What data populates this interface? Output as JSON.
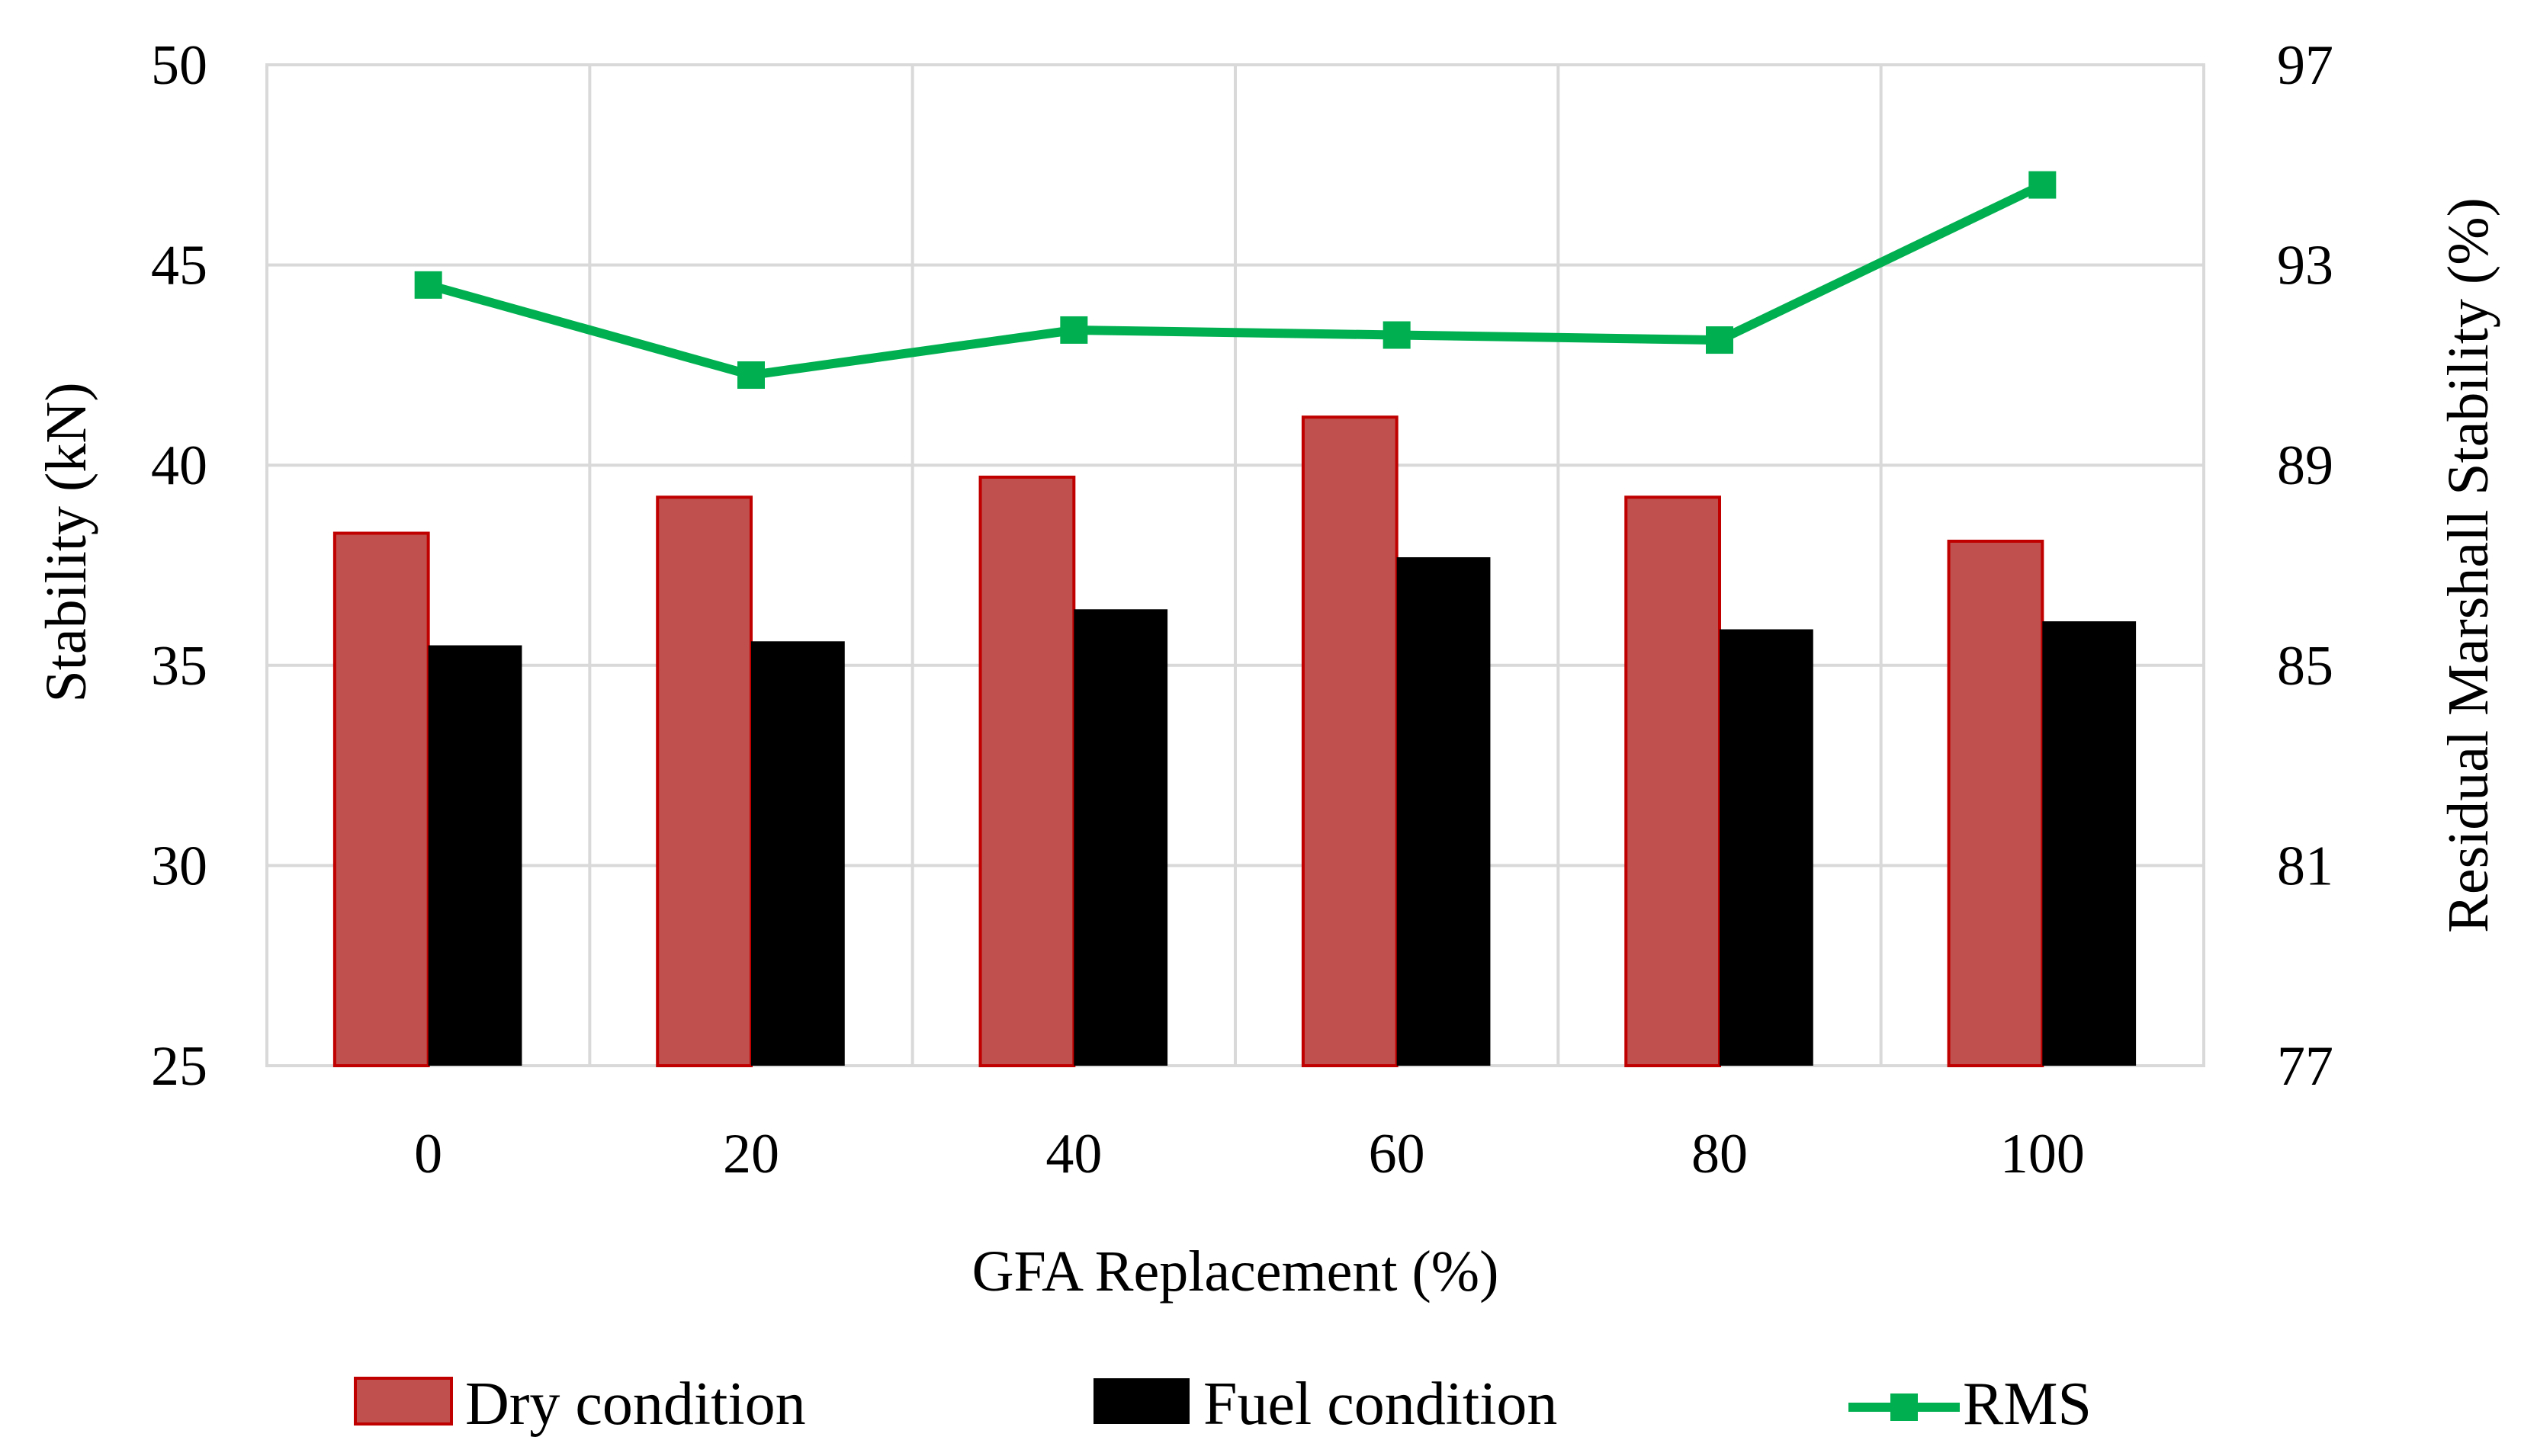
{
  "chart_data": {
    "type": "bar",
    "title": "",
    "xlabel": "GFA Replacement (%)",
    "ylabel": "Stability (kN)",
    "y2label": "Residual Marshall Stability (%)",
    "categories": [
      "0",
      "20",
      "40",
      "60",
      "80",
      "100"
    ],
    "ylim": [
      25,
      50
    ],
    "yticks": [
      "25",
      "30",
      "35",
      "40",
      "45",
      "50"
    ],
    "y2lim": [
      77,
      97
    ],
    "y2ticks": [
      "77",
      "81",
      "85",
      "89",
      "93",
      "97"
    ],
    "grid": true,
    "legend_position": "bottom",
    "series": [
      {
        "name": "Dry condition",
        "type": "bar",
        "axis": "left",
        "color": "#c0504d",
        "edge_color": "#c00000",
        "values": [
          38.3,
          39.2,
          39.7,
          41.2,
          39.2,
          38.1
        ]
      },
      {
        "name": "Fuel condition",
        "type": "bar",
        "axis": "left",
        "color": "#000000",
        "edge_color": "#000000",
        "values": [
          35.5,
          35.6,
          36.4,
          37.7,
          35.9,
          36.1
        ]
      },
      {
        "name": "RMS",
        "type": "line",
        "axis": "right",
        "color": "#00b050",
        "marker": "square",
        "values": [
          92.6,
          90.8,
          91.7,
          91.6,
          91.5,
          94.6
        ]
      }
    ]
  }
}
